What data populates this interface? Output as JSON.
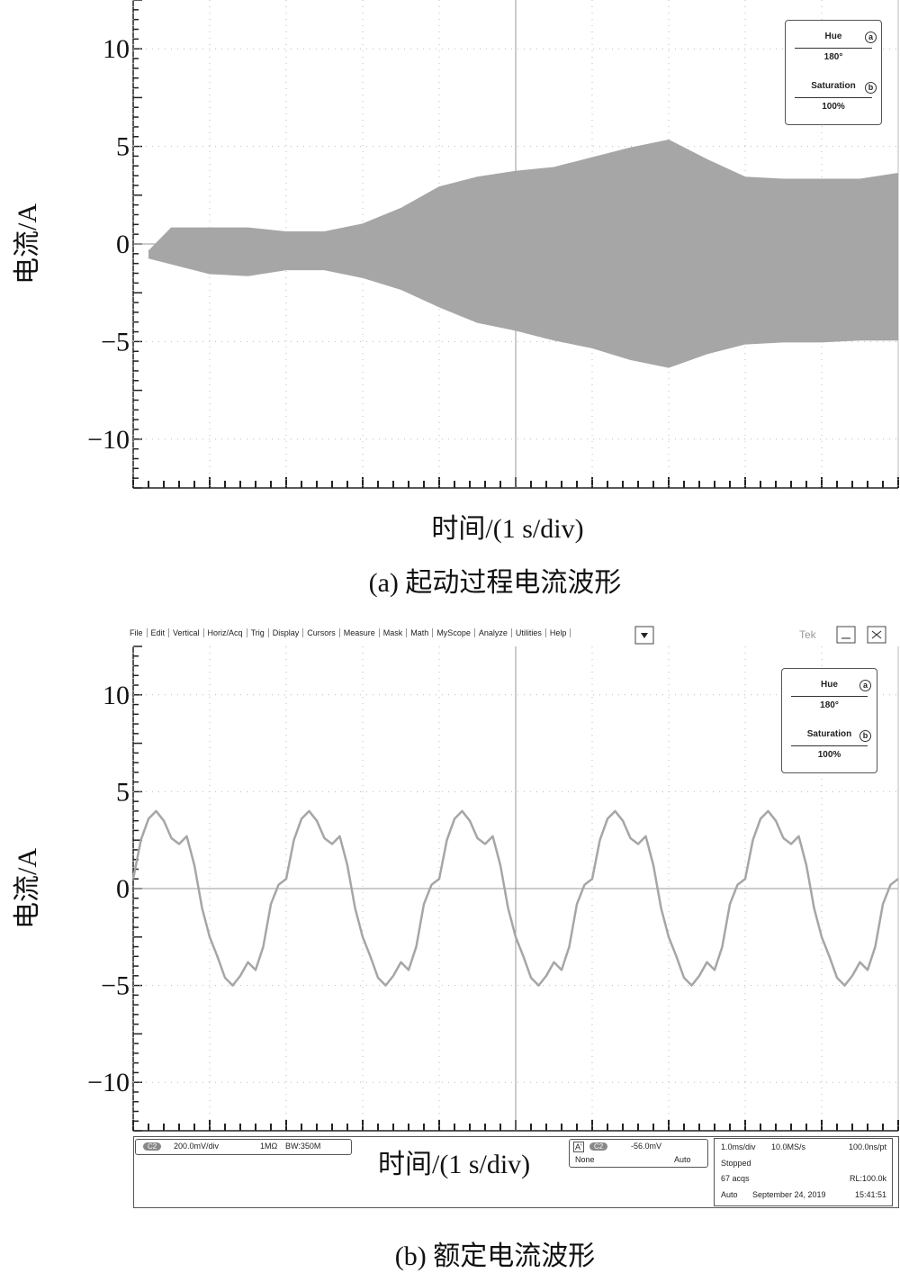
{
  "chart_data": [
    {
      "type": "band",
      "caption": "(a) 起动过程电流波形",
      "x_label": "时间/(1 s/div)",
      "y_label": "电流/A",
      "color": "#a6a6a6",
      "x": [
        0.2,
        0.5,
        1.0,
        1.5,
        2.0,
        2.5,
        3.0,
        3.5,
        4.0,
        4.5,
        5.0,
        5.5,
        6.0,
        6.5,
        7.0,
        7.5,
        8.0,
        8.5,
        9.0,
        9.5,
        10.0
      ],
      "upper": [
        -0.4,
        0.8,
        0.8,
        0.8,
        0.6,
        0.6,
        1.0,
        1.8,
        2.9,
        3.4,
        3.7,
        3.9,
        4.4,
        4.9,
        5.3,
        4.3,
        3.4,
        3.3,
        3.3,
        3.3,
        3.6
      ],
      "lower": [
        -0.7,
        -1.0,
        -1.5,
        -1.6,
        -1.3,
        -1.3,
        -1.7,
        -2.3,
        -3.2,
        -4.0,
        -4.4,
        -4.9,
        -5.3,
        -5.9,
        -6.3,
        -5.6,
        -5.1,
        -5.0,
        -5.0,
        -4.9,
        -4.9
      ],
      "xlim": [
        0,
        10
      ],
      "ylim": [
        -12.5,
        12.5
      ],
      "xticks": [
        0,
        1,
        2,
        3,
        4,
        5,
        6,
        7,
        8,
        9,
        10
      ],
      "yticks": [
        {
          "value": -10,
          "label": "−10"
        },
        {
          "value": -5,
          "label": "−5"
        },
        0,
        5,
        10
      ],
      "grid": true,
      "overlay": {
        "hue_label": "Hue",
        "hue_key": "a",
        "hue_value": "180°",
        "saturation_label": "Saturation",
        "saturation_key": "b",
        "saturation_value": "100%"
      }
    },
    {
      "type": "line",
      "caption": "(b) 额定电流波形",
      "x_label": "时间/(1 s/div)",
      "y_label": "电流/A",
      "color": "#a6a6a6",
      "x": [
        0,
        0.1,
        0.2,
        0.3,
        0.4,
        0.5,
        0.6,
        0.7,
        0.8,
        0.9,
        1.0,
        1.1,
        1.2,
        1.3,
        1.4,
        1.5,
        1.6,
        1.7,
        1.8,
        1.9,
        2.0,
        2.1,
        2.2,
        2.3,
        2.4,
        2.5,
        2.6,
        2.7,
        2.8,
        2.9,
        3.0,
        3.1,
        3.2,
        3.3,
        3.4,
        3.5,
        3.6,
        3.7,
        3.8,
        3.9,
        4.0,
        4.1,
        4.2,
        4.3,
        4.4,
        4.5,
        4.6,
        4.7,
        4.8,
        4.9,
        5.0,
        5.1,
        5.2,
        5.3,
        5.4,
        5.5,
        5.6,
        5.7,
        5.8,
        5.9,
        6.0,
        6.1,
        6.2,
        6.3,
        6.4,
        6.5,
        6.6,
        6.7,
        6.8,
        6.9,
        7.0,
        7.1,
        7.2,
        7.3,
        7.4,
        7.5,
        7.6,
        7.7,
        7.8,
        7.9,
        8.0,
        8.1,
        8.2,
        8.3,
        8.4,
        8.5,
        8.6,
        8.7,
        8.8,
        8.9,
        9.0,
        9.1,
        9.2,
        9.3,
        9.4,
        9.5,
        9.6,
        9.7,
        9.8,
        9.9,
        10.0
      ],
      "values": [
        0.5,
        2.5,
        3.6,
        4.0,
        3.5,
        2.6,
        2.3,
        2.7,
        1.2,
        -1.0,
        -2.5,
        -3.5,
        -4.6,
        -5.0,
        -4.5,
        -3.8,
        -4.2,
        -3.0,
        -0.8,
        0.2,
        0.5,
        2.5,
        3.6,
        4.0,
        3.5,
        2.6,
        2.3,
        2.7,
        1.2,
        -1.0,
        -2.5,
        -3.5,
        -4.6,
        -5.0,
        -4.5,
        -3.8,
        -4.2,
        -3.0,
        -0.8,
        0.2,
        0.5,
        2.5,
        3.6,
        4.0,
        3.5,
        2.6,
        2.3,
        2.7,
        1.2,
        -1.0,
        -2.5,
        -3.5,
        -4.6,
        -5.0,
        -4.5,
        -3.8,
        -4.2,
        -3.0,
        -0.8,
        0.2,
        0.5,
        2.5,
        3.6,
        4.0,
        3.5,
        2.6,
        2.3,
        2.7,
        1.2,
        -1.0,
        -2.5,
        -3.5,
        -4.6,
        -5.0,
        -4.5,
        -3.8,
        -4.2,
        -3.0,
        -0.8,
        0.2,
        0.5,
        2.5,
        3.6,
        4.0,
        3.5,
        2.6,
        2.3,
        2.7,
        1.2,
        -1.0,
        -2.5,
        -3.5,
        -4.6,
        -5.0,
        -4.5,
        -3.8,
        -4.2,
        -3.0,
        -0.8,
        0.2,
        0.5
      ],
      "xlim": [
        0,
        10
      ],
      "ylim": [
        -12.5,
        12.5
      ],
      "xticks": [
        0,
        1,
        2,
        3,
        4,
        5,
        6,
        7,
        8,
        9,
        10
      ],
      "yticks": [
        {
          "value": -10,
          "label": "−10"
        },
        {
          "value": -5,
          "label": "−5"
        },
        0,
        5,
        10
      ],
      "grid": true,
      "overlay": {
        "hue_label": "Hue",
        "hue_key": "a",
        "hue_value": "180°",
        "saturation_label": "Saturation",
        "saturation_key": "b",
        "saturation_value": "100%"
      },
      "menu": [
        "File",
        "Edit",
        "Vertical",
        "Horiz/Acq",
        "Trig",
        "Display",
        "Cursors",
        "Measure",
        "Mask",
        "Math",
        "MyScope",
        "Analyze",
        "Utilities",
        "Help"
      ],
      "brand": "Tek",
      "status": {
        "channel": "C2",
        "scale": "200.0mV/div",
        "impedance": "1MΩ",
        "bandwidth": "BW:350M",
        "trigger_mode": "A'",
        "trigger_channel": "C2",
        "trigger_level": "-56.0mV",
        "coupling": "None",
        "trigger_auto": "Auto",
        "timebase": "1.0ms/div",
        "sample_rate": "10.0MS/s",
        "resolution": "100.0ns/pt",
        "state": "Stopped",
        "acqs": "67 acqs",
        "record_length": "RL:100.0k",
        "acq_mode": "Auto",
        "date": "September 24, 2019",
        "time": "15:41:51"
      }
    }
  ]
}
